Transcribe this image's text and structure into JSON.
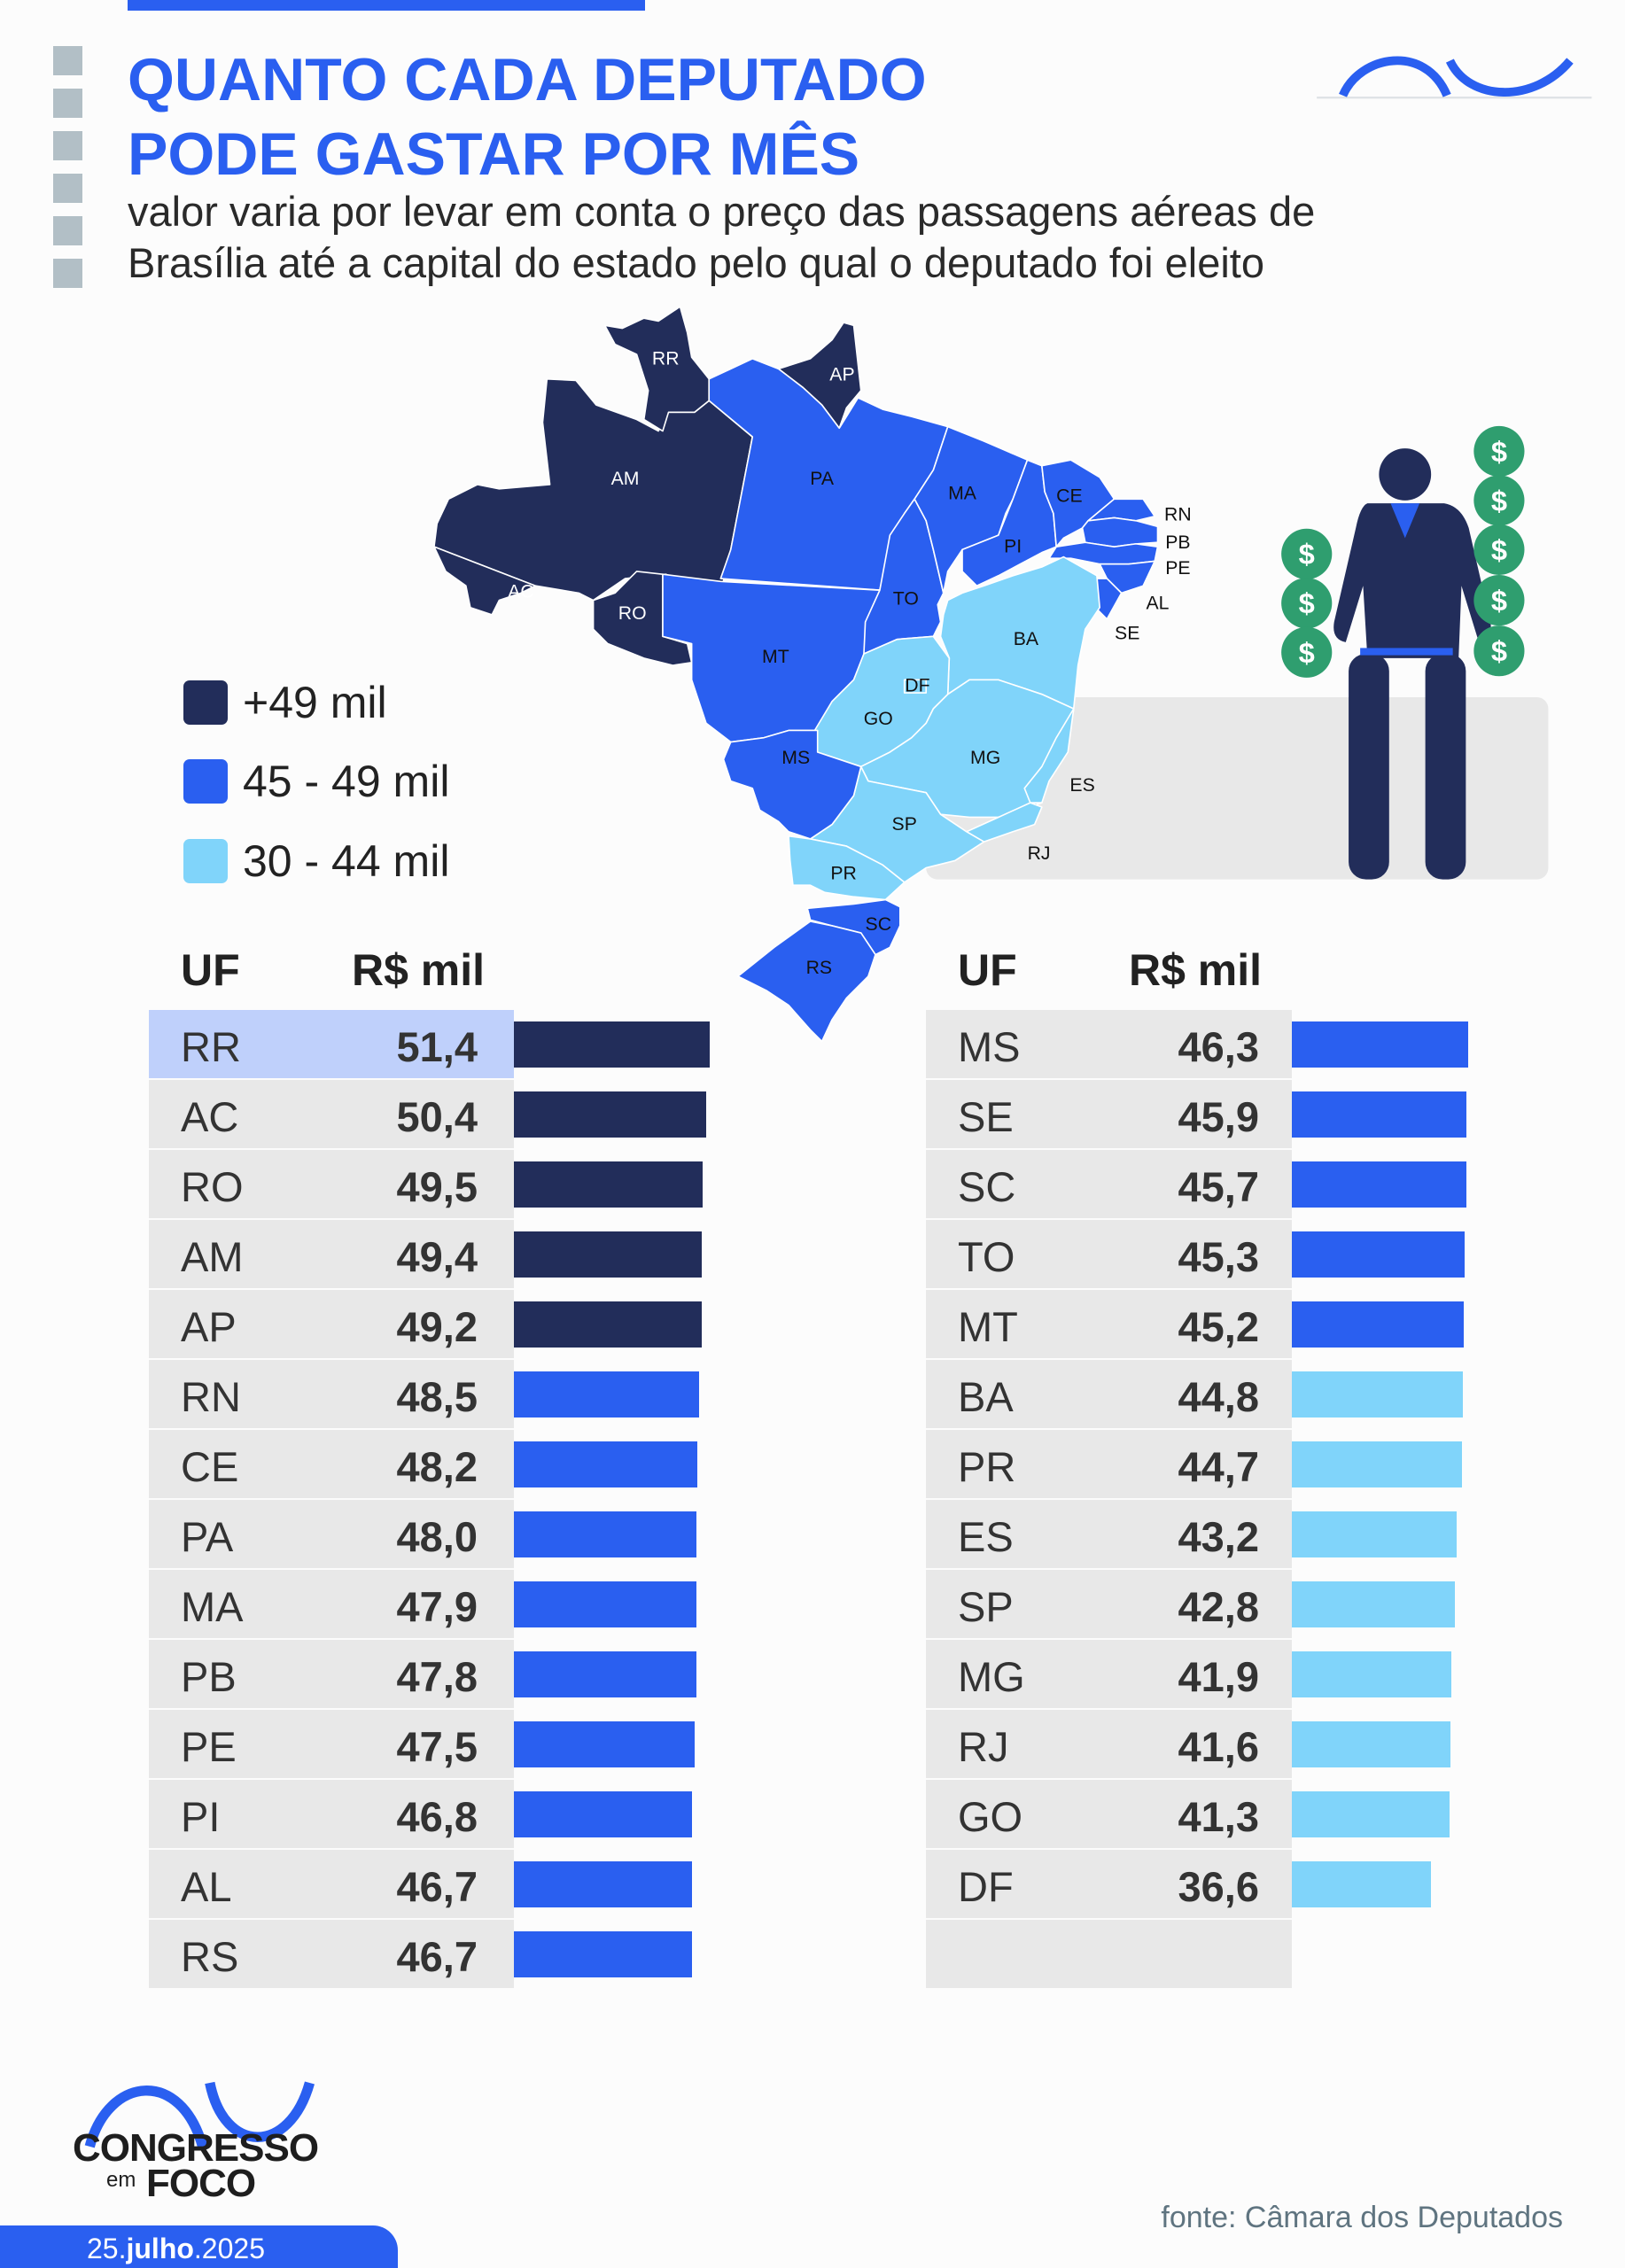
{
  "header": {
    "title_line1": "QUANTO CADA DEPUTADO",
    "title_line2": "PODE GASTAR POR MÊS",
    "subtitle_line1": "valor varia por levar em conta o preço das passagens aéreas de",
    "subtitle_line2": "Brasília até a capital do estado pelo qual o deputado foi eleito"
  },
  "colors": {
    "accent": "#2a5ff0",
    "high": "#222d5a",
    "mid": "#2a5ff0",
    "low": "#80d4fa",
    "highlight": "#bfd0fb",
    "money": "#2f9e6f"
  },
  "legend": [
    {
      "label": "+49 mil",
      "color": "#222d5a"
    },
    {
      "label": "45 - 49 mil",
      "color": "#2a5ff0"
    },
    {
      "label": "30 - 44 mil",
      "color": "#80d4fa"
    }
  ],
  "map_labels": {
    "RR": "RR",
    "AP": "AP",
    "AM": "AM",
    "PA": "PA",
    "MA": "MA",
    "CE": "CE",
    "RN": "RN",
    "PB": "PB",
    "PE": "PE",
    "AL": "AL",
    "SE": "SE",
    "PI": "PI",
    "TO": "TO",
    "BA": "BA",
    "AC": "AC",
    "RO": "RO",
    "MT": "MT",
    "DF": "DF",
    "GO": "GO",
    "MG": "MG",
    "MS": "MS",
    "ES": "ES",
    "SP": "SP",
    "RJ": "RJ",
    "PR": "PR",
    "SC": "SC",
    "RS": "RS"
  },
  "table": {
    "col_uf": "UF",
    "col_value": "R$ mil"
  },
  "chart_data": {
    "type": "bar",
    "orientation": "horizontal",
    "xlabel": "R$ mil",
    "categories": [
      "RR",
      "AC",
      "RO",
      "AM",
      "AP",
      "RN",
      "CE",
      "PA",
      "MA",
      "PB",
      "PE",
      "PI",
      "AL",
      "RS",
      "MS",
      "SE",
      "SC",
      "TO",
      "MT",
      "BA",
      "PR",
      "ES",
      "SP",
      "MG",
      "RJ",
      "GO",
      "DF"
    ],
    "values": [
      51.4,
      50.4,
      49.5,
      49.4,
      49.2,
      48.5,
      48.2,
      48.0,
      47.9,
      47.8,
      47.5,
      46.8,
      46.7,
      46.7,
      46.3,
      45.9,
      45.7,
      45.3,
      45.2,
      44.8,
      44.7,
      43.2,
      42.8,
      41.9,
      41.6,
      41.3,
      36.6
    ],
    "labels": [
      "51,4",
      "50,4",
      "49,5",
      "49,4",
      "49,2",
      "48,5",
      "48,2",
      "48,0",
      "47,9",
      "47,8",
      "47,5",
      "46,8",
      "46,7",
      "46,7",
      "46,3",
      "45,9",
      "45,7",
      "45,3",
      "45,2",
      "44,8",
      "44,7",
      "43,2",
      "42,8",
      "41,9",
      "41,6",
      "41,3",
      "36,6"
    ],
    "highlighted": "RR"
  },
  "footer": {
    "brand_line1": "CONGRESSO",
    "brand_em": "em",
    "brand_line2": "FOCO",
    "date_day": "25.",
    "date_month": "julho",
    "date_year": ".2025",
    "source": "fonte: Câmara dos Deputados"
  }
}
